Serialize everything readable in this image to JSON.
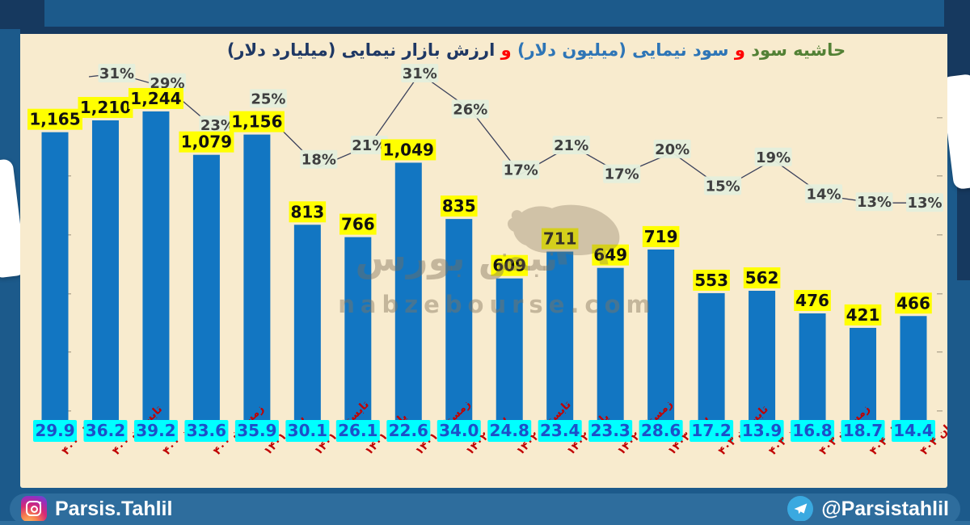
{
  "title": {
    "full": "حاشیه سود و سود نیمایی (میلیون دلار) و ارزش بازار نیمایی (میلیارد دلار)",
    "segments": [
      {
        "text": "حاشیه سود",
        "color": "#538135"
      },
      {
        "text": " و ",
        "color": "#ff0000"
      },
      {
        "text": "سود نیمایی (میلیون دلار)",
        "color": "#2e75b6"
      },
      {
        "text": " و ",
        "color": "#ff0000"
      },
      {
        "text": "ارزش بازار نیمایی (میلیارد دلار)",
        "color": "#1f3864"
      }
    ]
  },
  "chart_data": {
    "type": "combo",
    "title": "حاشیه سود و سود نیمایی (میلیون دلار) و ارزش بازار نیمایی (میلیارد دلار)",
    "categories": [
      "بهار ۴۰۰",
      "تابستان ۴۰۰",
      "پاییز ۴۰۰",
      "زمستان ۴۰۰",
      "بهار ۱۴۰۱",
      "تابستان ۱۴۰۱",
      "پاییز ۱۴۰۱",
      "زمستان ۱۴۰۱",
      "بهار ۱۴۰۲",
      "تابستان ۱۴۰۲",
      "پاییز ۱۴۰۲",
      "زمستان ۱۴۰۲",
      "بهار ۱۴۰۳",
      "تابستان ۴۰۳",
      "پاییز ۴۰۳",
      "زمستان ۴۰۳",
      "بهار ۴۰۴",
      "تابستان ۴۰۴"
    ],
    "series": [
      {
        "name": "سود نیمایی (میلیون دلار)",
        "type": "bar",
        "color": "#1276c2",
        "label_bg": "#ffff00",
        "label_color": "#111111",
        "values": [
          1165,
          1210,
          1244,
          1079,
          1156,
          813,
          766,
          1049,
          835,
          609,
          711,
          649,
          719,
          553,
          562,
          476,
          421,
          466
        ]
      },
      {
        "name": "ارزش بازار نیمایی (میلیارد دلار)",
        "type": "data-labels",
        "label_bg": "#00ffff",
        "label_color": "#1d50c8",
        "values": [
          "29.9",
          "36.2",
          "39.2",
          "33.6",
          "35.9",
          "30.1",
          "26.1",
          "22.6",
          "34.0",
          "24.8",
          "23.4",
          "23.3",
          "28.6",
          "17.2",
          "13.9",
          "16.8",
          "18.7",
          "14.4"
        ]
      },
      {
        "name": "حاشیه سود",
        "type": "line",
        "color": "#3c425c",
        "label_bg": "#e4efdc",
        "label_color": "#3f3f3f",
        "unit": "%",
        "values": [
          null,
          31,
          29,
          23,
          25,
          18,
          21,
          31,
          26,
          17,
          21,
          17,
          20,
          15,
          19,
          14,
          13,
          13
        ]
      }
    ],
    "x_labels_color": "#c00000",
    "legend": "none",
    "y_axis_visible": false
  },
  "watermark": {
    "brand_fa": "نبض بورس",
    "domain": "nabzebourse.com",
    "icon": "bull-icon"
  },
  "footer": {
    "instagram": "Parsis.Tahlil",
    "telegram": "@Parsistahlil",
    "icons": [
      "instagram-icon",
      "telegram-icon"
    ]
  }
}
